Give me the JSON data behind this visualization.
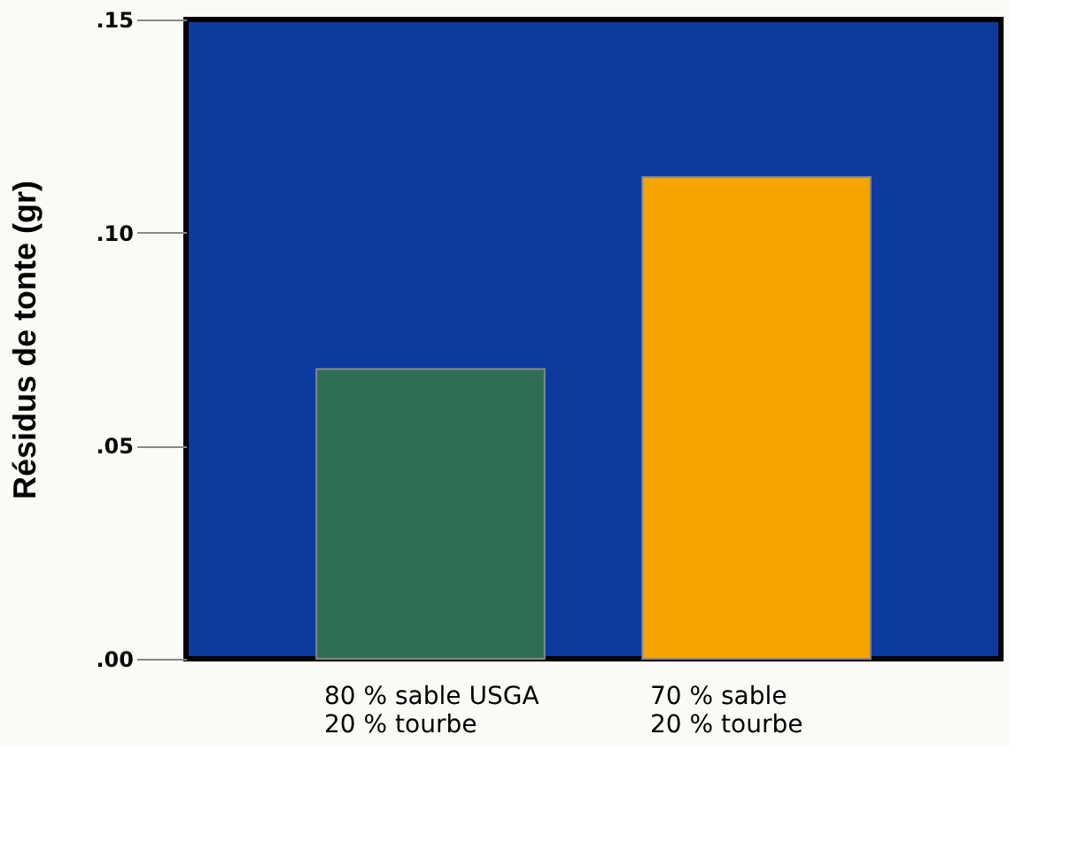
{
  "chart_data": {
    "type": "bar",
    "ylabel": "Résidus de tonte (gr)",
    "categories": [
      "80 % sable USGA\n20 % tourbe",
      "70 % sable\n20 % tourbe"
    ],
    "values": [
      0.068,
      0.113
    ],
    "colors": [
      "#2f6e52",
      "#f7a400"
    ],
    "ylim": [
      0,
      0.15
    ],
    "yticks": [
      {
        "value": 0,
        "label": ".00"
      },
      {
        "value": 0.05,
        "label": ".05"
      },
      {
        "value": 0.1,
        "label": ".10"
      },
      {
        "value": 0.15,
        "label": ".15"
      }
    ],
    "grid": false
  }
}
